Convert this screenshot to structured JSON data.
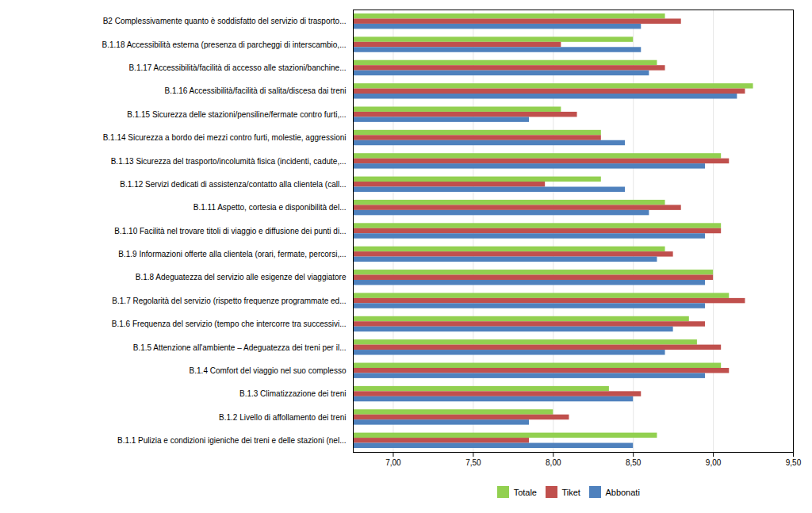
{
  "chart_data": {
    "type": "bar",
    "orientation": "horizontal",
    "categories": [
      "B2 Complessivamente quanto è soddisfatto del servizio di trasporto...",
      "B.1.18 Accessibilità esterna (presenza di parcheggi di interscambio,...",
      "B.1.17 Accessibilità/facilità di accesso alle stazioni/banchine...",
      "B.1.16 Accessibilità/facilità di salita/discesa dai treni",
      "B.1.15 Sicurezza delle stazioni/pensiline/fermate contro furti,...",
      "B.1.14 Sicurezza a bordo dei mezzi contro furti, molestie, aggressioni",
      "B.1.13 Sicurezza del trasporto/incolumità fisica (incidenti, cadute,...",
      "B.1.12 Servizi dedicati di assistenza/contatto alla clientela (call...",
      "B.1.11 Aspetto, cortesia e disponibilità del...",
      "B.1.10 Facilità nel trovare titoli di viaggio e diffusione dei punti di...",
      "B.1.9 Informazioni offerte alla clientela (orari, fermate, percorsi,...",
      "B.1.8 Adeguatezza del servizio alle esigenze del viaggiatore",
      "B.1.7 Regolarità del servizio (rispetto frequenze programmate ed...",
      "B.1.6 Frequenza del servizio (tempo che intercorre tra successivi...",
      "B.1.5 Attenzione all'ambiente – Adeguatezza dei treni per il...",
      "B.1.4 Comfort del viaggio nel suo complesso",
      "B.1.3 Climatizzazione dei treni",
      "B.1.2 Livello di affollamento dei treni",
      "B.1.1 Pulizia e condizioni igieniche dei treni e delle stazioni (nel..."
    ],
    "series": [
      {
        "name": "Totale",
        "color": "#92D050",
        "values": [
          8.7,
          8.5,
          8.65,
          9.25,
          8.05,
          8.3,
          9.05,
          8.3,
          8.7,
          9.05,
          8.7,
          9.0,
          9.1,
          8.85,
          8.9,
          9.05,
          8.35,
          8.0,
          8.65
        ]
      },
      {
        "name": "Tiket",
        "color": "#C0504D",
        "values": [
          8.8,
          8.05,
          8.7,
          9.2,
          8.15,
          8.3,
          9.1,
          7.95,
          8.8,
          9.05,
          8.75,
          9.0,
          9.2,
          8.95,
          9.05,
          9.1,
          8.55,
          8.1,
          7.85
        ]
      },
      {
        "name": "Abbonati",
        "color": "#4F81BD",
        "values": [
          8.55,
          8.55,
          8.6,
          9.15,
          7.85,
          8.45,
          8.95,
          8.45,
          8.6,
          8.95,
          8.65,
          8.95,
          8.95,
          8.75,
          8.7,
          8.95,
          8.5,
          7.85,
          8.5
        ]
      }
    ],
    "xlim": [
      6.75,
      9.5
    ],
    "xticks": [
      {
        "value": 7.0,
        "label": "7,00"
      },
      {
        "value": 7.5,
        "label": "7,50"
      },
      {
        "value": 8.0,
        "label": "8,00"
      },
      {
        "value": 8.5,
        "label": "8,50"
      },
      {
        "value": 9.0,
        "label": "9,00"
      },
      {
        "value": 9.5,
        "label": "9,50"
      }
    ],
    "grid": true,
    "legend": "bottom"
  }
}
